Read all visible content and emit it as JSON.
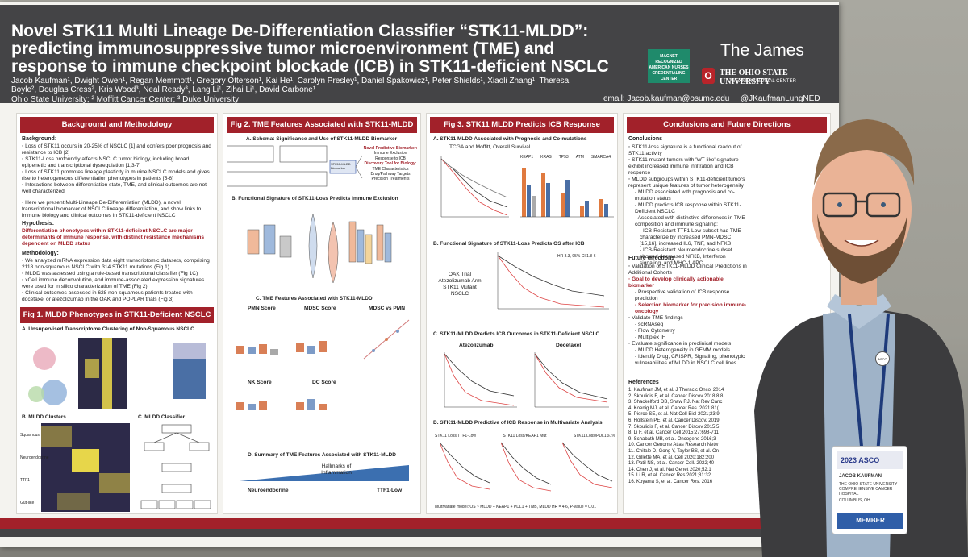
{
  "poster": {
    "title": "Novel STK11 Multi Lineage De-Differentiation Classifier “STK11-MLDD”: predicting immunosuppressive tumor microenvironment (TME) and response to immune checkpoint blockade (ICB) in STK11-deficient NSCLC",
    "authors": "Jacob Kaufman¹, Dwight Owen¹, Regan Memmott¹, Gregory Otterson¹, Kai He¹, Carolyn Presley¹, Daniel Spakowicz¹, Peter Shields¹, Xiaoli Zhang¹, Theresa Boyle², Douglas Cress², Kris Wood³, Neal Ready³, Lang Li¹, Zihai Li¹, David Carbone¹",
    "affiliations": "Ohio State University; ² Moffitt Cancer Center; ³ Duke University",
    "email": "email: Jacob.kaufman@osumc.edu",
    "handle": "@JKaufmanLungNED",
    "brand": "The James",
    "magnet": "MAGNET RECOGNIZED AMERICAN NURSES CREDENTIALING CENTER",
    "osu_name": "THE OHIO STATE UNIVERSITY",
    "osu_sub": "WEXNER MEDICAL CENTER",
    "osu_letter": "O"
  },
  "col1": {
    "head": "Background and Methodology",
    "background_label": "Background:",
    "background": [
      "◦ Loss of STK11 occurs in 20-25% of NSCLC [1] and confers poor prognosis and resistance to ICB [2]",
      "◦ STK11-Loss profoundly affects NSCLC tumor biology, including broad epigenetic and transcriptional dysregulation [1,3-7]",
      "◦ Loss of STK11 promotes lineage plasticity in murine NSCLC models and gives rise to heterogeneous differentiation phenotypes in patients [5-6]",
      "◦ Interactions between differentiation state, TME, and clinical outcomes are not well characterized"
    ],
    "mldd_intro": "◦ Here we present Multi-Lineage De-Differentiation (MLDD), a novel transcriptional biomarker of NSCLC lineage differentiation, and show links to immune biology and clinical outcomes in STK11-deficient NSCLC",
    "hypothesis_label": "Hypothesis:",
    "hypothesis": "Differentiation phenotypes within STK11-deficient NSCLC are major determinants of immune response, with distinct resistance mechanisms dependent on MLDD status",
    "methods_label": "Methodology:",
    "methods": [
      "◦ We analyzed mRNA expression data eight transcriptomic datasets, comprising 2118 non-squamous NSCLC with 314 STK11 mutations (Fig 1)",
      "◦ MLDD was assessed using a rule-based transcriptional classifier (Fig 1C)",
      "◦ xCell immune deconvolution, and immune-associated expression signatures were used for in silico characterization of TME (Fig 2)",
      "◦ Clinical outcomes assessed in 628 non-squamous patients treated with docetaxel or atezolizumab in the OAK and POPLAR trials (Fig 3)"
    ],
    "fig1_head": "Fig 1. MLDD Phenotypes in STK11-Deficient NSCLC",
    "fig1a": "A. Unsupervised Transcriptome Clustering of Non-Squamous NSCLC",
    "fig1b": "B. MLDD Clusters",
    "fig1c": "C. MLDD Classifier",
    "fig1b_labels": [
      "Squamous",
      "Neuroendocrine",
      "TTF1",
      "Gut-like"
    ]
  },
  "col2": {
    "head": "Fig 2. TME Features Associated with STK11-MLDD",
    "a": "A. Schema: Significance and Use of STK11-MLDD Biomarker",
    "a_right": [
      "Novel Predictive Biomarker:",
      "Immune Exclusion",
      "Response to ICB",
      "Discovery Tool for Biology:",
      "TME Characteristics",
      "Drug/Pathway Targets",
      "Precision Treatments"
    ],
    "a_center": "STK11-MLDD Biomarker",
    "b": "B. Functional Signature of STK11-Loss Predicts Immune Exclusion",
    "c": "C. TME Features Associated with STK11-MLDD",
    "c_labels": [
      "PMN Score",
      "MDSC Score",
      "MDSC vs PMN",
      "NK Score",
      "DC Score"
    ],
    "d": "D. Summary of TME Features Associated with STK11-MLDD",
    "d_center": "Hallmarks of Inflammation",
    "d_left": "Neuroendocrine",
    "d_right": "TTF1-Low"
  },
  "col3": {
    "head": "Fig 3. STK11 MLDD Predicts ICB Response",
    "a": "A. STK11 MLDD Associated with Prognosis and Co-mutations",
    "a_sub": "TCGA and Moffitt, Overall Survival",
    "a_genes": [
      "KEAP1",
      "KRAS",
      "TP53",
      "ATM",
      "SMARCA4"
    ],
    "b": "B. Functional Signature of STK11-Loss Predicts OS after ICB",
    "b_left": "OAK Trial Atezolizumab Arm STK11 Mutant NSCLC",
    "b_hr": "HR 3.3, 95% CI 1.8-6",
    "c": "C. STK11-MLDD Predicts ICB Outcomes in STK11-Deficient NSCLC",
    "c_labels": [
      "Atezolizumab",
      "Docetaxel"
    ],
    "d": "D. STK11-MLDD Predictive of ICB Response in Multivariate Analysis",
    "d_labels": [
      "STK11 Loss/TTF1-Low",
      "STK11 Loss/KEAP1 Mut",
      "STK11 Loss/PDL1 ≥1%"
    ],
    "d_footer": "Multivariate model: OS ~ MLDD + KEAP1 + PDL1 + TMB, MLDD HR = 4.6, P-value = 0.01"
  },
  "col4": {
    "head": "Conclusions and Future Directions",
    "conclusions_label": "Conclusions",
    "conclusions": [
      "◦ STK11-loss signature is a functional readout of STK11 activity",
      "◦ STK11 mutant tumors with 'WT-like' signature exhibit increased immune infiltration and ICB response",
      "◦ MLDD subgroups within STK11-deficient tumors represent unique features of tumor heterogeneity",
      "- MLDD associated with prognosis and co-mutation status",
      "- MLDD predicts ICB response within STK11-Deficient NSCLC",
      "- Associated with distinctive differences in TME composition and immune signaling:",
      "- ICB-Resistant TTF1 Low subset had TME characterize by increased PMN-MDSC [15,16], increased IL6, TNF, and NFKB",
      "- ICB-Resistant Neuroendocrine subset showed decreased NFKB, Interferon signaling, and MHC-1 APC"
    ],
    "future_label": "Future directions",
    "future": [
      "◦ Validation of STK11-MLDD Clinical Predictions in Additional Cohorts",
      "◦ Goal to develop clinically actionable biomarker",
      "- Prospective validation of ICB response prediction",
      "- Selection biomarker for precision immune-oncology",
      "◦ Validate TME findings",
      "- scRNAseq",
      "- Flow Cytometry",
      "- Multiplex IF",
      "◦ Evaluate significance in preclinical models",
      "- MLDD Heterogeneity in GEMM models",
      "- Identify Drug, CRISPR, Signaling, phenotypic vulnerabilities of MLDD in NSCLC cell lines"
    ],
    "refs_label": "References",
    "refs": [
      "1. Kaufman JM, et al. J Thoracic Oncol 2014",
      "2. Skoulidis F, et al. Cancer Discov 2018;8:8",
      "3. Shackelford DB, Shaw RJ. Nat Rev Canc",
      "4. Koenig MJ, et al. Cancer Res. 2021;81(",
      "5. Pierce SE, et al. Nat Cell Biol 2021;23:9",
      "6. Hollstein PE, et al. Cancer Discov. 2019",
      "7. Skoulidis F, et al. Cancer Discov 2015;5",
      "8. Li F, et al. Cancer Cell 2015;27:698-711",
      "9. Schabath MB, et al. Oncogene 2016;3",
      "10. Cancer Genome Atlas Research Netw",
      "11. Chitale D, Gong Y, Taylor BS, et al. On",
      "12. Gillette MA, et al. Cell 2020;182:200",
      "13. Patil NS, et al. Cancer Cell. 2022;40",
      "14. Chen J, et al. Nat Genet 2020;52:1",
      "15. Li R, et al. Cancer Res 2021;81:32",
      "16. Koyama S, et al. Cancer Res. 2016"
    ]
  },
  "badge": {
    "year": "2023 ASCO",
    "name": "JACOB KAUFMAN",
    "org": "THE OHIO STATE UNIVERSITY COMPREHENSIVE CANCER HOSPITAL",
    "city": "COLUMBUS, OH",
    "member": "MEMBER",
    "lanyard_tag": "ASCO"
  }
}
